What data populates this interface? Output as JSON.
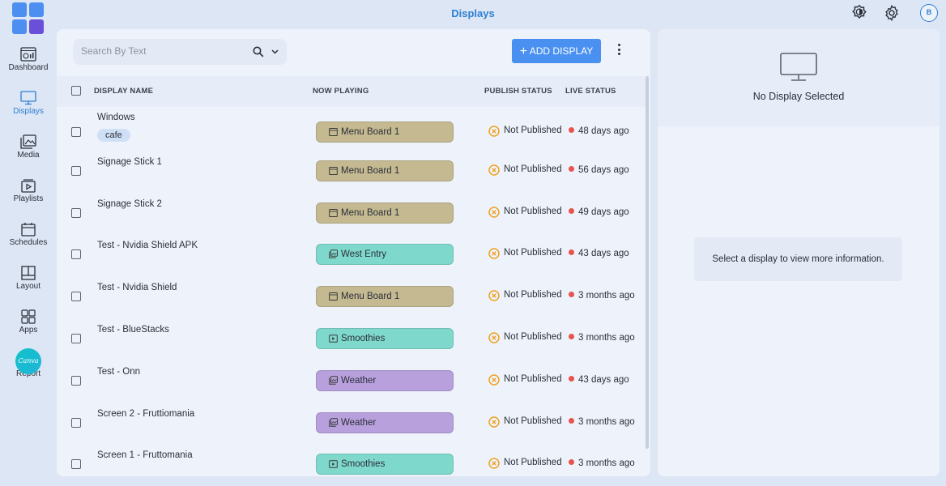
{
  "header": {
    "title": "Displays",
    "avatar_initial": "B"
  },
  "sidebar": {
    "items": [
      {
        "label": "Dashboard",
        "icon": "dashboard-icon"
      },
      {
        "label": "Displays",
        "icon": "monitor-icon",
        "active": true
      },
      {
        "label": "Media",
        "icon": "media-icon"
      },
      {
        "label": "Playlists",
        "icon": "playlist-icon"
      },
      {
        "label": "Schedules",
        "icon": "calendar-icon"
      },
      {
        "label": "Layout",
        "icon": "layout-icon"
      },
      {
        "label": "Apps",
        "icon": "apps-icon"
      },
      {
        "label": "Report",
        "icon": "chart-icon"
      }
    ],
    "canva_label": "Canva"
  },
  "toolbar": {
    "search_placeholder": "Search By Text",
    "add_label": "ADD DISPLAY"
  },
  "table": {
    "columns": {
      "name": "DISPLAY NAME",
      "playing": "NOW PLAYING",
      "publish": "PUBLISH STATUS",
      "live": "LIVE STATUS"
    },
    "rows": [
      {
        "name": "Windows",
        "tag": "cafe",
        "playing": "Menu Board 1",
        "kind": "schedule",
        "publish": "Not Published",
        "live": "48 days ago"
      },
      {
        "name": "Signage Stick 1",
        "playing": "Menu Board 1",
        "kind": "schedule",
        "publish": "Not Published",
        "live": "56 days ago"
      },
      {
        "name": "Signage Stick 2",
        "playing": "Menu Board 1",
        "kind": "schedule",
        "publish": "Not Published",
        "live": "49 days ago"
      },
      {
        "name": "Test - Nvidia Shield APK",
        "playing": "West Entry",
        "kind": "media",
        "publish": "Not Published",
        "live": "43 days ago"
      },
      {
        "name": "Test - Nvidia Shield",
        "playing": "Menu Board 1",
        "kind": "schedule",
        "publish": "Not Published",
        "live": "3 months ago"
      },
      {
        "name": "Test - BlueStacks",
        "playing": "Smoothies",
        "kind": "playlist",
        "publish": "Not Published",
        "live": "3 months ago"
      },
      {
        "name": "Test - Onn",
        "playing": "Weather",
        "kind": "app",
        "publish": "Not Published",
        "live": "43 days ago"
      },
      {
        "name": "Screen 2 - Fruttiomania",
        "playing": "Weather",
        "kind": "app",
        "publish": "Not Published",
        "live": "3 months ago"
      },
      {
        "name": "Screen 1 - Fruttomania",
        "playing": "Smoothies",
        "kind": "playlist",
        "publish": "Not Published",
        "live": "3 months ago"
      }
    ]
  },
  "pill_colors": {
    "schedule": "#c4b990",
    "media": "#7fd8cc",
    "playlist": "#7fd8cc",
    "app": "#b8a0dc"
  },
  "detail": {
    "empty_title": "No Display Selected",
    "empty_hint": "Select a display to view more information."
  }
}
